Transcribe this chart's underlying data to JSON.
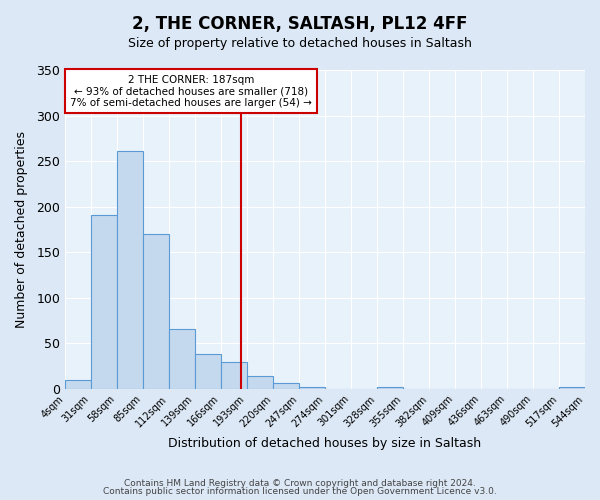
{
  "title": "2, THE CORNER, SALTASH, PL12 4FF",
  "subtitle": "Size of property relative to detached houses in Saltash",
  "xlabel": "Distribution of detached houses by size in Saltash",
  "ylabel": "Number of detached properties",
  "bar_color": "#c5d9ee",
  "bar_edge_color": "#5b9bd5",
  "bin_edges": [
    4,
    31,
    58,
    85,
    112,
    139,
    166,
    193,
    220,
    247,
    274,
    301,
    328,
    355,
    382,
    409,
    436,
    463,
    490,
    517,
    544
  ],
  "bar_heights": [
    10,
    191,
    261,
    170,
    66,
    38,
    29,
    14,
    6,
    2,
    0,
    0,
    2,
    0,
    0,
    0,
    0,
    0,
    0,
    2
  ],
  "tick_labels": [
    "4sqm",
    "31sqm",
    "58sqm",
    "85sqm",
    "112sqm",
    "139sqm",
    "166sqm",
    "193sqm",
    "220sqm",
    "247sqm",
    "274sqm",
    "301sqm",
    "328sqm",
    "355sqm",
    "382sqm",
    "409sqm",
    "436sqm",
    "463sqm",
    "490sqm",
    "517sqm",
    "544sqm"
  ],
  "vline_x": 187,
  "vline_color": "#cc0000",
  "annotation_title": "2 THE CORNER: 187sqm",
  "annotation_line1": "← 93% of detached houses are smaller (718)",
  "annotation_line2": "7% of semi-detached houses are larger (54) →",
  "annotation_box_color": "#ffffff",
  "annotation_box_edge": "#cc0000",
  "ylim": [
    0,
    350
  ],
  "yticks": [
    0,
    50,
    100,
    150,
    200,
    250,
    300,
    350
  ],
  "footer1": "Contains HM Land Registry data © Crown copyright and database right 2024.",
  "footer2": "Contains public sector information licensed under the Open Government Licence v3.0.",
  "bg_color": "#dce8f5",
  "plot_bg_color": "#e8f2fb"
}
